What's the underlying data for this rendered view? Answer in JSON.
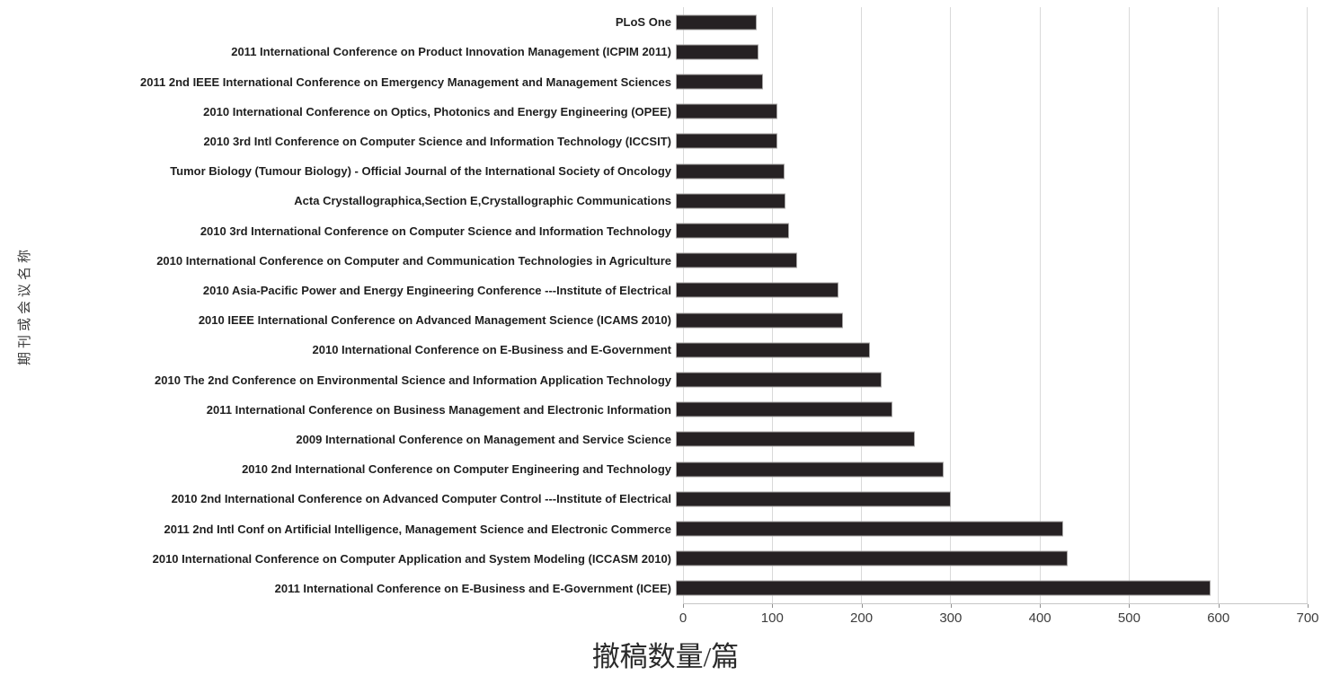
{
  "chart_data": {
    "type": "bar",
    "orientation": "horizontal",
    "title": "",
    "xlabel": "撤稿数量/篇",
    "ylabel": "期刊或会议名称",
    "xlim": [
      0,
      700
    ],
    "xticks": [
      0,
      100,
      200,
      300,
      400,
      500,
      600,
      700
    ],
    "grid": true,
    "legend": "none",
    "bar_color": "#262123",
    "categories": [
      "PLoS One",
      "2011 International Conference on Product Innovation Management (ICPIM 2011)",
      "2011 2nd IEEE International Conference on Emergency Management and Management Sciences",
      "2010 International Conference on Optics, Photonics and Energy Engineering (OPEE)",
      "2010 3rd Intl Conference on Computer Science and Information Technology (ICCSIT)",
      "Tumor Biology (Tumour Biology) - Official Journal of the International Society of Oncology",
      "Acta Crystallographica,Section E,Crystallographic Communications",
      "2010 3rd International Conference on Computer Science and Information Technology",
      "2010 International Conference on Computer and Communication Technologies in Agriculture",
      "2010 Asia-Pacific Power and Energy Engineering Conference ---Institute  of Electrical",
      "2010 IEEE International Conference on Advanced Management Science (ICAMS 2010)",
      "2010 International Conference on E-Business and E-Government",
      "2010 The 2nd Conference on Environmental Science and Information Application Technology",
      "2011 International Conference on Business Management and Electronic Information",
      "2009 International Conference on Management and Service Science",
      "2010 2nd International Conference on Computer Engineering and Technology",
      "2010 2nd International Conference on Advanced Computer Control ---Institute  of Electrical",
      "2011 2nd Intl Conf on Artificial Intelligence, Management Science and Electronic Commerce",
      "2010 International Conference on Computer Application and System Modeling (ICCASM 2010)",
      "2011 International Conference on E-Business and E-Government (ICEE)"
    ],
    "values": [
      90,
      92,
      97,
      113,
      113,
      121,
      122,
      126,
      135,
      180,
      185,
      215,
      228,
      240,
      265,
      297,
      305,
      430,
      435,
      593
    ]
  }
}
